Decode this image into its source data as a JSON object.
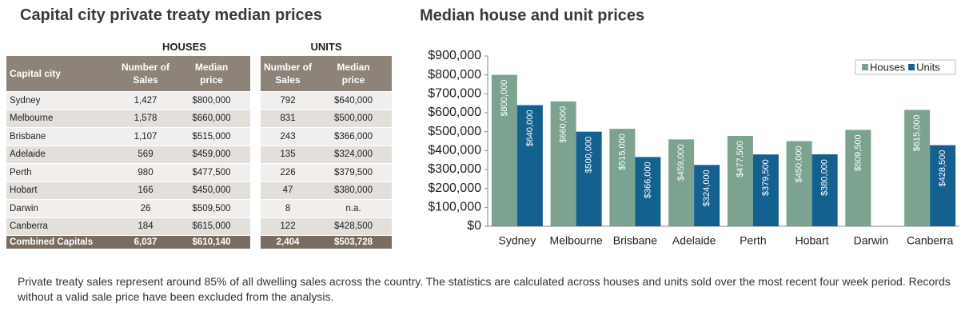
{
  "left_title": "Capital city private treaty median prices",
  "table": {
    "group_headers": [
      "HOUSES",
      "UNITS"
    ],
    "columns": [
      "Capital city",
      "Number of Sales",
      "Median price",
      "Number of Sales",
      "Median price"
    ],
    "rows": [
      [
        "Sydney",
        "1,427",
        "$800,000",
        "792",
        "$640,000"
      ],
      [
        "Melbourne",
        "1,578",
        "$660,000",
        "831",
        "$500,000"
      ],
      [
        "Brisbane",
        "1,107",
        "$515,000",
        "243",
        "$366,000"
      ],
      [
        "Adelaide",
        "569",
        "$459,000",
        "135",
        "$324,000"
      ],
      [
        "Perth",
        "980",
        "$477,500",
        "226",
        "$379,500"
      ],
      [
        "Hobart",
        "166",
        "$450,000",
        "47",
        "$380,000"
      ],
      [
        "Darwin",
        "26",
        "$509,500",
        "8",
        "n.a."
      ],
      [
        "Canberra",
        "184",
        "$615,000",
        "122",
        "$428,500"
      ]
    ],
    "total": [
      "Combined Capitals",
      "6,037",
      "$610,140",
      "2,404",
      "$503,728"
    ]
  },
  "chart_data": {
    "type": "bar",
    "title": "Median house and unit prices",
    "categories": [
      "Sydney",
      "Melbourne",
      "Brisbane",
      "Adelaide",
      "Perth",
      "Hobart",
      "Darwin",
      "Canberra"
    ],
    "series": [
      {
        "name": "Houses",
        "color": "#7ba38f",
        "values": [
          800000,
          660000,
          515000,
          459000,
          477500,
          450000,
          509500,
          615000
        ],
        "value_labels": [
          "$800,000",
          "$660,000",
          "$515,000",
          "$459,000",
          "$477,500",
          "$450,000",
          "$509,500",
          "$615,000"
        ]
      },
      {
        "name": "Units",
        "color": "#14608f",
        "values": [
          640000,
          500000,
          366000,
          324000,
          379500,
          380000,
          null,
          428500
        ],
        "value_labels": [
          "$640,000",
          "$500,000",
          "$366,000",
          "$324,000",
          "$379,500",
          "$380,000",
          null,
          "$428,500"
        ]
      }
    ],
    "ylim": [
      0,
      900000
    ],
    "yticks": [
      {
        "value": 0,
        "label": "$0"
      },
      {
        "value": 100000,
        "label": "$100,000"
      },
      {
        "value": 200000,
        "label": "$200,000"
      },
      {
        "value": 300000,
        "label": "$300,000"
      },
      {
        "value": 400000,
        "label": "$400,000"
      },
      {
        "value": 500000,
        "label": "$500,000"
      },
      {
        "value": 600000,
        "label": "$600,000"
      },
      {
        "value": 700000,
        "label": "$700,000"
      },
      {
        "value": 800000,
        "label": "$800,000"
      },
      {
        "value": 900000,
        "label": "$900,000"
      }
    ],
    "grid": false,
    "legend": "top-right"
  },
  "footnote": "Private treaty sales represent around 85% of all dwelling sales across the country.  The statistics are calculated across houses and units sold over the most recent four week period. Records without a valid sale price have been excluded from the analysis."
}
